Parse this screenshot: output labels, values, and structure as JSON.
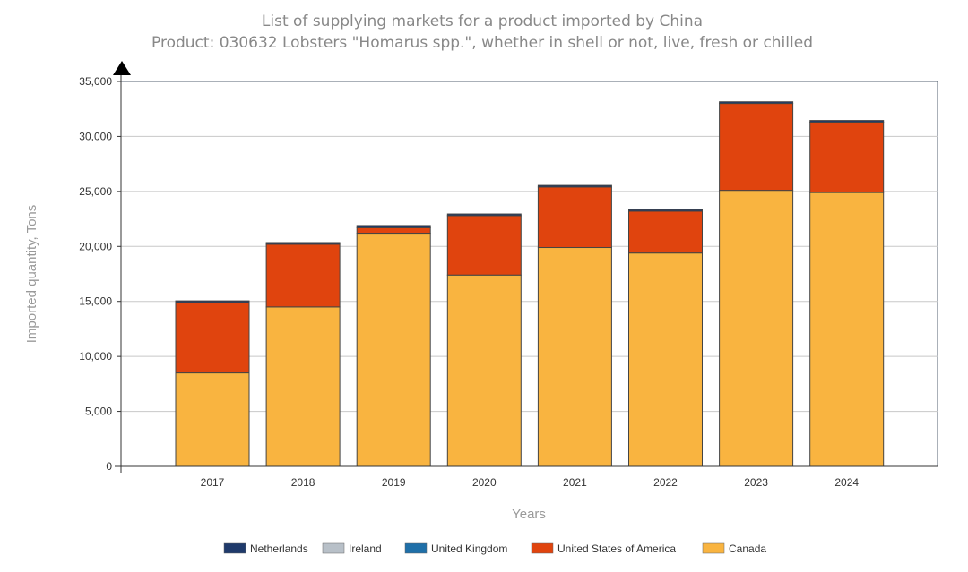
{
  "chart_data": {
    "type": "bar",
    "stacked": true,
    "title": "List of supplying markets for a product imported by China",
    "subtitle": "Product: 030632 Lobsters \"Homarus spp.\", whether in shell or not, live, fresh or chilled",
    "xlabel": "Years",
    "ylabel": "Imported quantity, Tons",
    "ylim": [
      0,
      35000
    ],
    "yticks": [
      "0",
      "5,000",
      "10,000",
      "15,000",
      "20,000",
      "25,000",
      "30,000",
      "35,000"
    ],
    "ytick_values": [
      0,
      5000,
      10000,
      15000,
      20000,
      25000,
      30000,
      35000
    ],
    "grid": true,
    "legend_position": "bottom",
    "categories": [
      "2017",
      "2018",
      "2019",
      "2020",
      "2021",
      "2022",
      "2023",
      "2024"
    ],
    "series": [
      {
        "name": "Canada",
        "color": "#F9B440",
        "values": [
          8500,
          14500,
          21200,
          17400,
          19900,
          19400,
          25100,
          24900
        ]
      },
      {
        "name": "United States of America",
        "color": "#E0440E",
        "values": [
          6400,
          5700,
          500,
          5400,
          5500,
          3800,
          7900,
          6400
        ]
      },
      {
        "name": "United Kingdom",
        "color": "#1F6FA8",
        "values": [
          0,
          0,
          0,
          0,
          0,
          0,
          0,
          0
        ]
      },
      {
        "name": "Ireland",
        "color": "#B8C0C8",
        "values": [
          0,
          0,
          0,
          0,
          0,
          0,
          0,
          0
        ]
      },
      {
        "name": "Netherlands",
        "color": "#1F3A6B",
        "values": [
          150,
          150,
          200,
          150,
          150,
          150,
          150,
          150
        ]
      }
    ],
    "legend_order": [
      "Netherlands",
      "Ireland",
      "United Kingdom",
      "United States of America",
      "Canada"
    ]
  }
}
